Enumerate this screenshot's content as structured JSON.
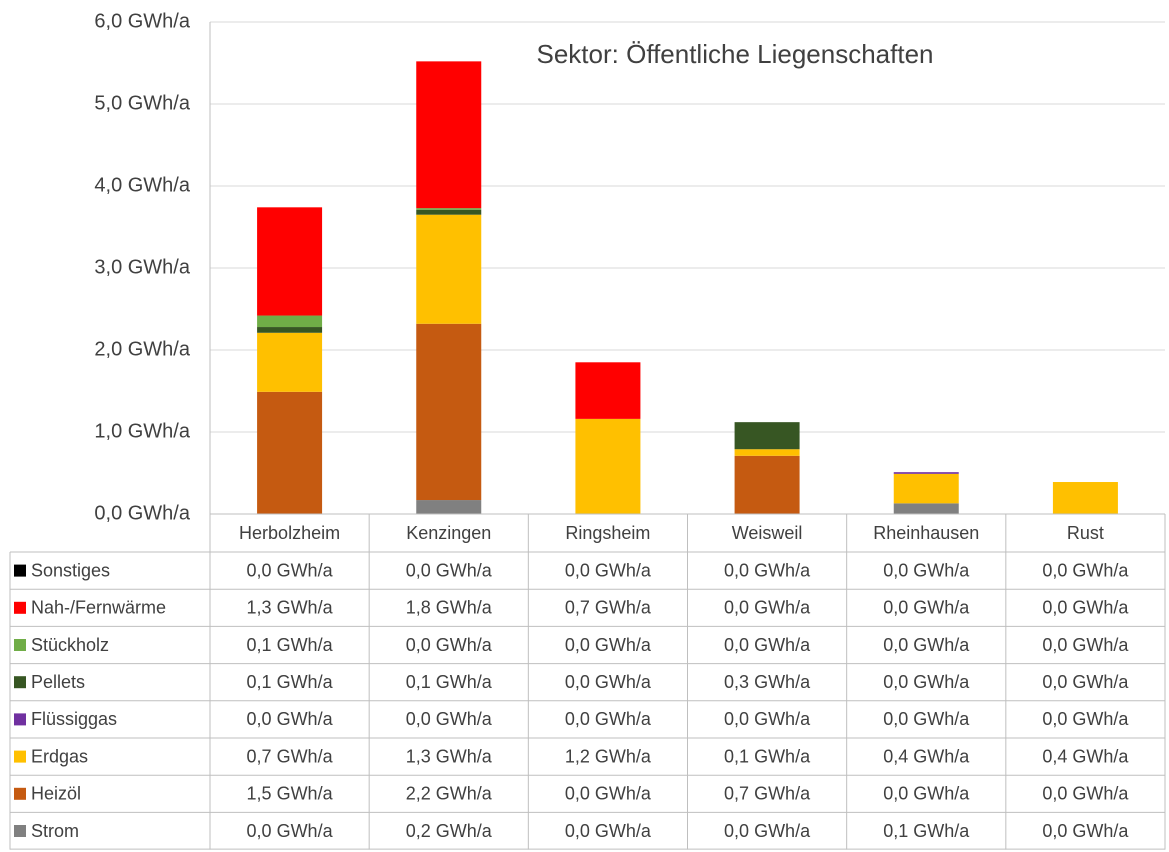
{
  "chart_data": {
    "type": "stacked_bar",
    "annotation": "Sektor: Öffentliche Liegenschaften",
    "categories": [
      "Herbolzheim",
      "Kenzingen",
      "Ringsheim",
      "Weisweil",
      "Rheinhausen",
      "Rust"
    ],
    "series": [
      {
        "name": "Sonstiges",
        "color": "#000000",
        "values": [
          0,
          0,
          0,
          0,
          0,
          0
        ],
        "value_labels": [
          "0,0 GWh/a",
          "0,0 GWh/a",
          "0,0 GWh/a",
          "0,0 GWh/a",
          "0,0 GWh/a",
          "0,0 GWh/a"
        ]
      },
      {
        "name": "Nah-/Fernwärme",
        "color": "#ff0000",
        "values": [
          1.32,
          1.79,
          0.69,
          0,
          0,
          0
        ],
        "value_labels": [
          "1,3 GWh/a",
          "1,8 GWh/a",
          "0,7 GWh/a",
          "0,0 GWh/a",
          "0,0 GWh/a",
          "0,0 GWh/a"
        ]
      },
      {
        "name": "Stückholz",
        "color": "#70ad47",
        "values": [
          0.14,
          0.02,
          0,
          0,
          0,
          0
        ],
        "value_labels": [
          "0,1 GWh/a",
          "0,0 GWh/a",
          "0,0 GWh/a",
          "0,0 GWh/a",
          "0,0 GWh/a",
          "0,0 GWh/a"
        ]
      },
      {
        "name": "Pellets",
        "color": "#375623",
        "values": [
          0.07,
          0.06,
          0,
          0.33,
          0,
          0
        ],
        "value_labels": [
          "0,1 GWh/a",
          "0,1 GWh/a",
          "0,0 GWh/a",
          "0,3 GWh/a",
          "0,0 GWh/a",
          "0,0 GWh/a"
        ]
      },
      {
        "name": "Flüssiggas",
        "color": "#7030a0",
        "values": [
          0,
          0,
          0,
          0,
          0.02,
          0
        ],
        "value_labels": [
          "0,0 GWh/a",
          "0,0 GWh/a",
          "0,0 GWh/a",
          "0,0 GWh/a",
          "0,0 GWh/a",
          "0,0 GWh/a"
        ]
      },
      {
        "name": "Erdgas",
        "color": "#ffc000",
        "values": [
          0.72,
          1.33,
          1.16,
          0.08,
          0.36,
          0.39
        ],
        "value_labels": [
          "0,7 GWh/a",
          "1,3 GWh/a",
          "1,2 GWh/a",
          "0,1 GWh/a",
          "0,4 GWh/a",
          "0,4 GWh/a"
        ]
      },
      {
        "name": "Heizöl",
        "color": "#c55a11",
        "values": [
          1.49,
          2.15,
          0,
          0.71,
          0,
          0
        ],
        "value_labels": [
          "1,5 GWh/a",
          "2,2 GWh/a",
          "0,0 GWh/a",
          "0,7 GWh/a",
          "0,0 GWh/a",
          "0,0 GWh/a"
        ]
      },
      {
        "name": "Strom",
        "color": "#808080",
        "values": [
          0,
          0.17,
          0,
          0,
          0.13,
          0
        ],
        "value_labels": [
          "0,0 GWh/a",
          "0,2 GWh/a",
          "0,0 GWh/a",
          "0,0 GWh/a",
          "0,1 GWh/a",
          "0,0 GWh/a"
        ]
      }
    ],
    "ylim": [
      0,
      6
    ],
    "yticks": [
      {
        "value": 0,
        "label": "0,0 GWh/a"
      },
      {
        "value": 1,
        "label": "1,0 GWh/a"
      },
      {
        "value": 2,
        "label": "2,0 GWh/a"
      },
      {
        "value": 3,
        "label": "3,0 GWh/a"
      },
      {
        "value": 4,
        "label": "4,0 GWh/a"
      },
      {
        "value": 5,
        "label": "5,0 GWh/a"
      },
      {
        "value": 6,
        "label": "6,0 GWh/a"
      }
    ],
    "grid": true
  }
}
